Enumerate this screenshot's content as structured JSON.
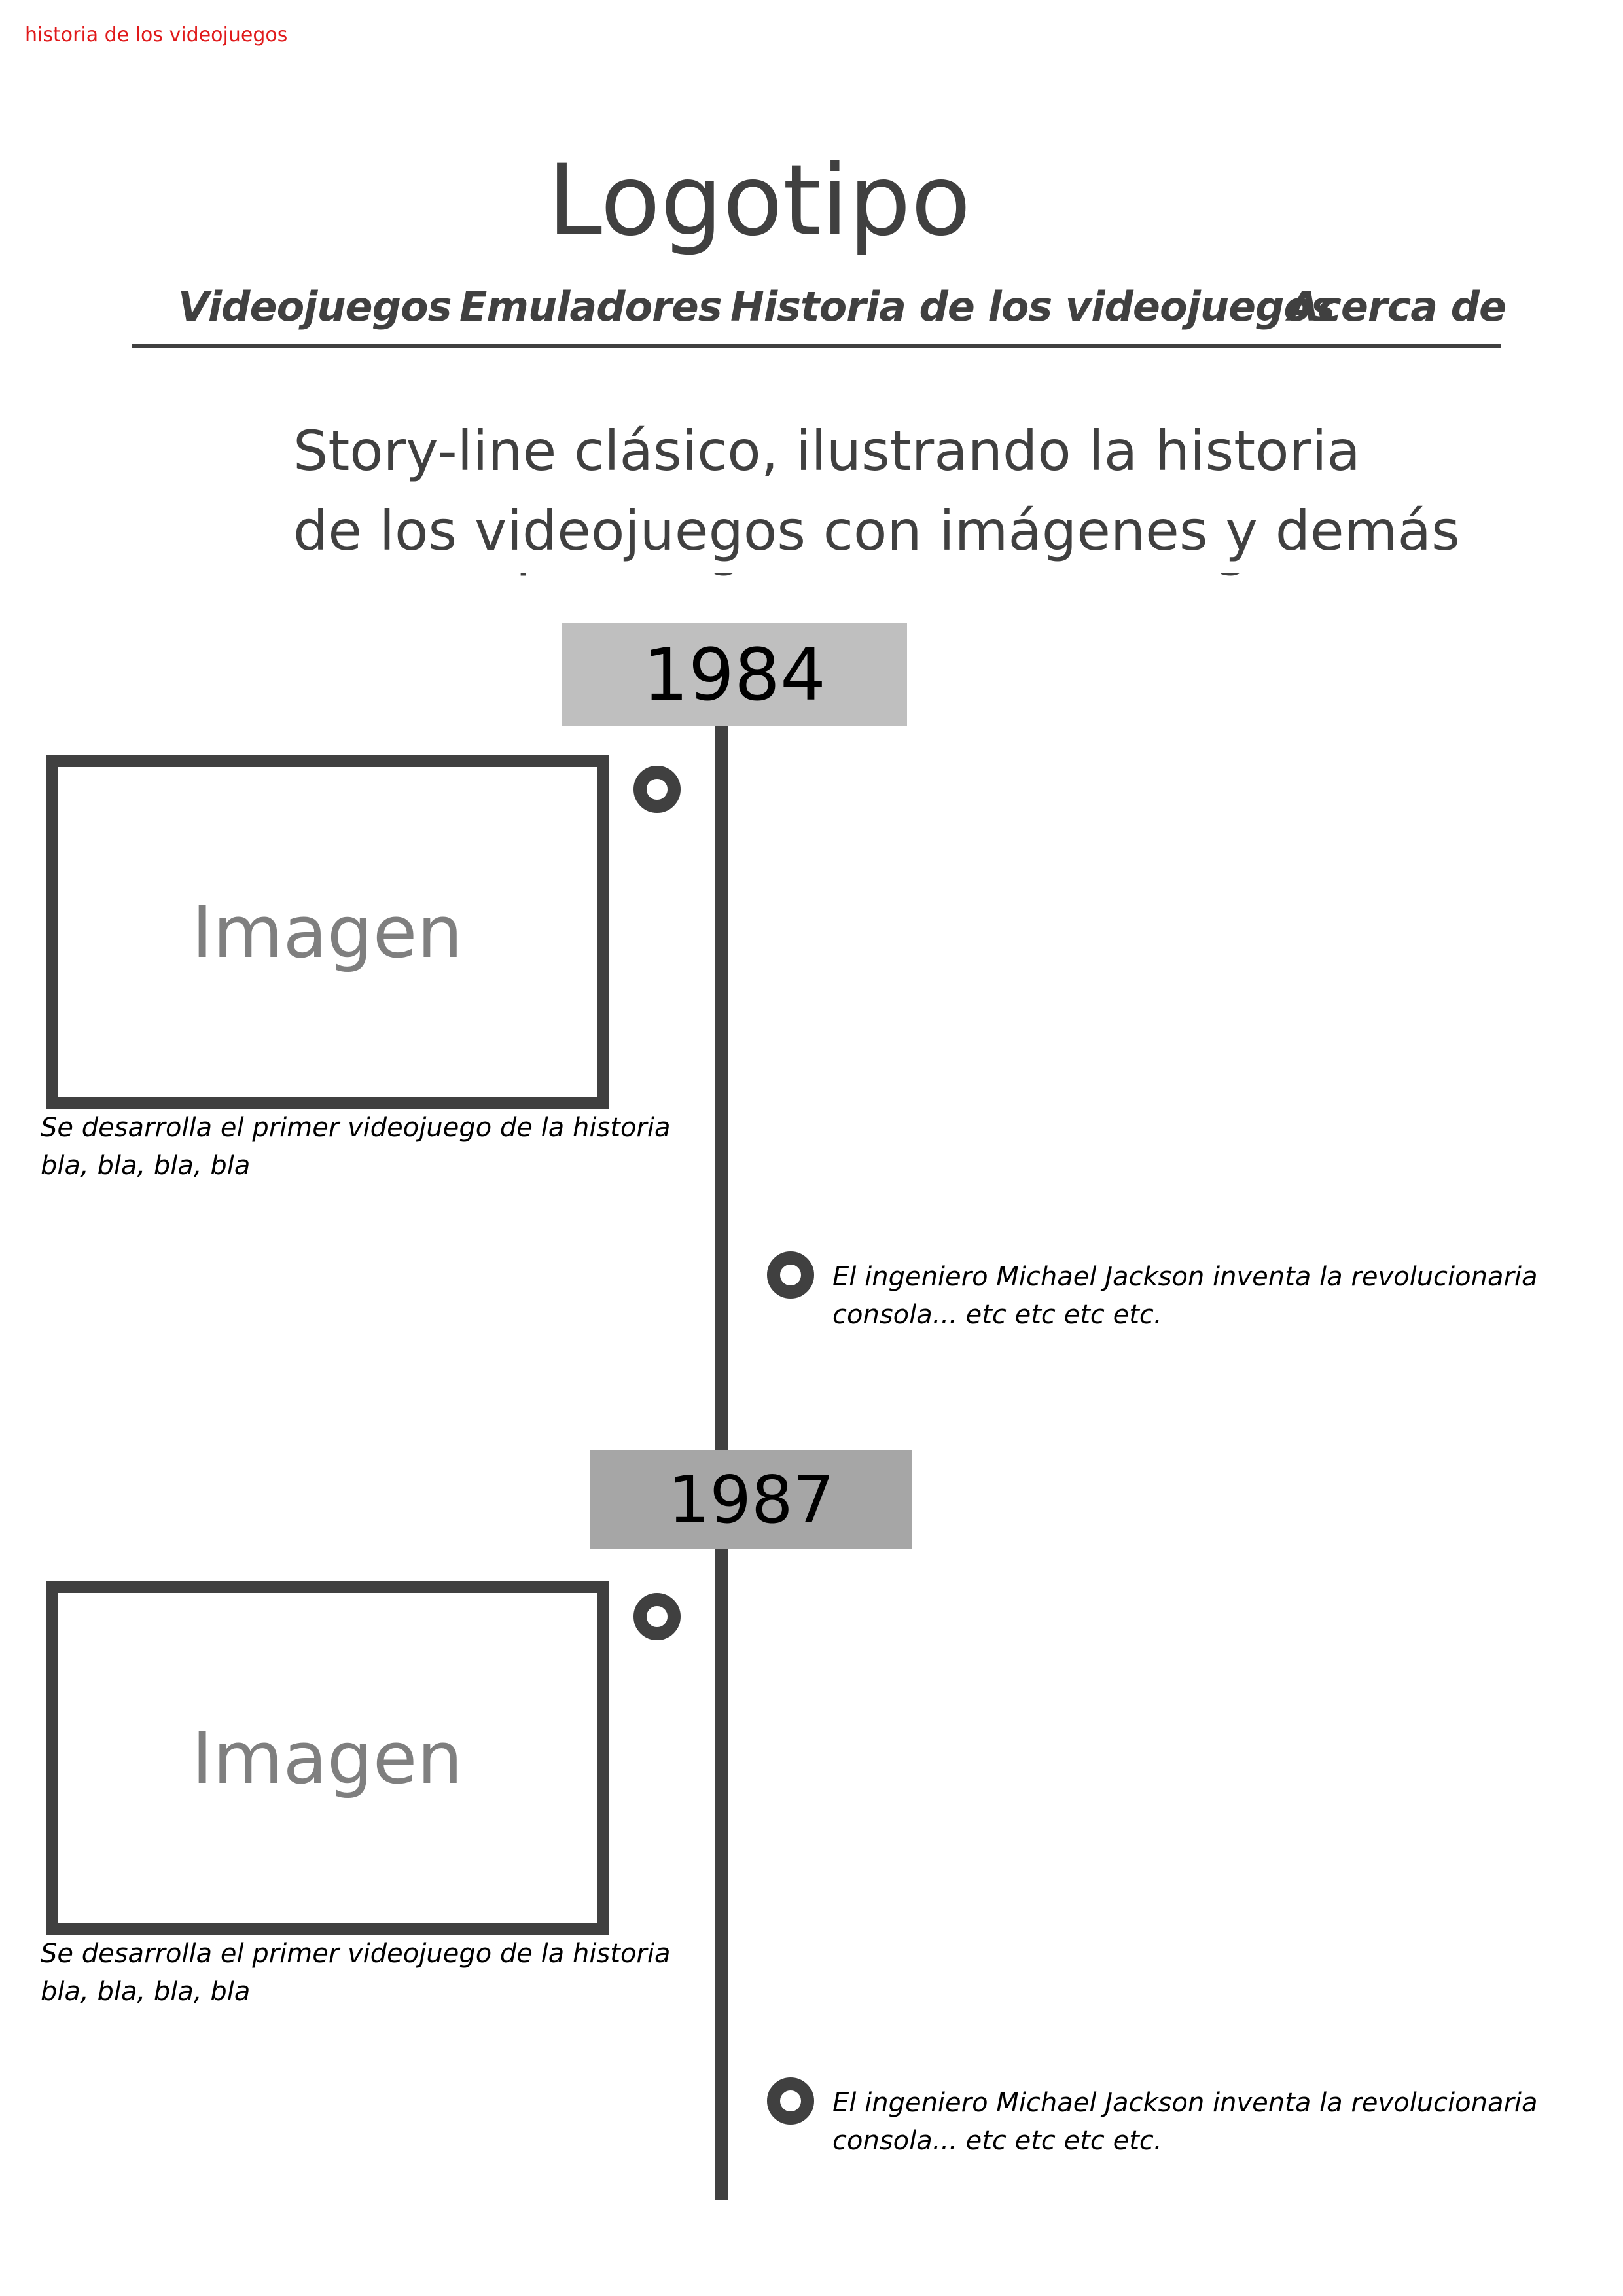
{
  "document": {
    "title": "historia de los videojuegos"
  },
  "header": {
    "logo": "Logotipo",
    "nav": [
      {
        "label": "Videojuegos"
      },
      {
        "label": "Emuladores"
      },
      {
        "label": "Historia de los videojuegos"
      },
      {
        "label": "Acerca de"
      }
    ]
  },
  "intro": {
    "line1": "Story-line clásico, ilustrando la historia",
    "line2": "de los videojuegos con imágenes y demás"
  },
  "timeline": [
    {
      "year": "1984",
      "year_box_color": "#bfbfbf",
      "image_label": "Imagen",
      "left_caption_line1": "Se desarrolla el primer videojuego de la historia",
      "left_caption_line2": "bla, bla, bla, bla",
      "right_caption_line1": "El ingeniero Michael Jackson inventa la revolucionaria",
      "right_caption_line2": "consola... etc etc etc etc."
    },
    {
      "year": "1987",
      "year_box_color": "#a6a6a6",
      "image_label": "Imagen",
      "left_caption_line1": "Se desarrolla el primer videojuego de la historia",
      "left_caption_line2": "bla, bla, bla, bla",
      "right_caption_line1": "El ingeniero Michael Jackson inventa la revolucionaria",
      "right_caption_line2": "consola... etc etc etc etc."
    }
  ],
  "colors": {
    "accent_red": "#e0191a",
    "dark_gray": "#404040",
    "placeholder_gray": "#7f7f7f"
  }
}
